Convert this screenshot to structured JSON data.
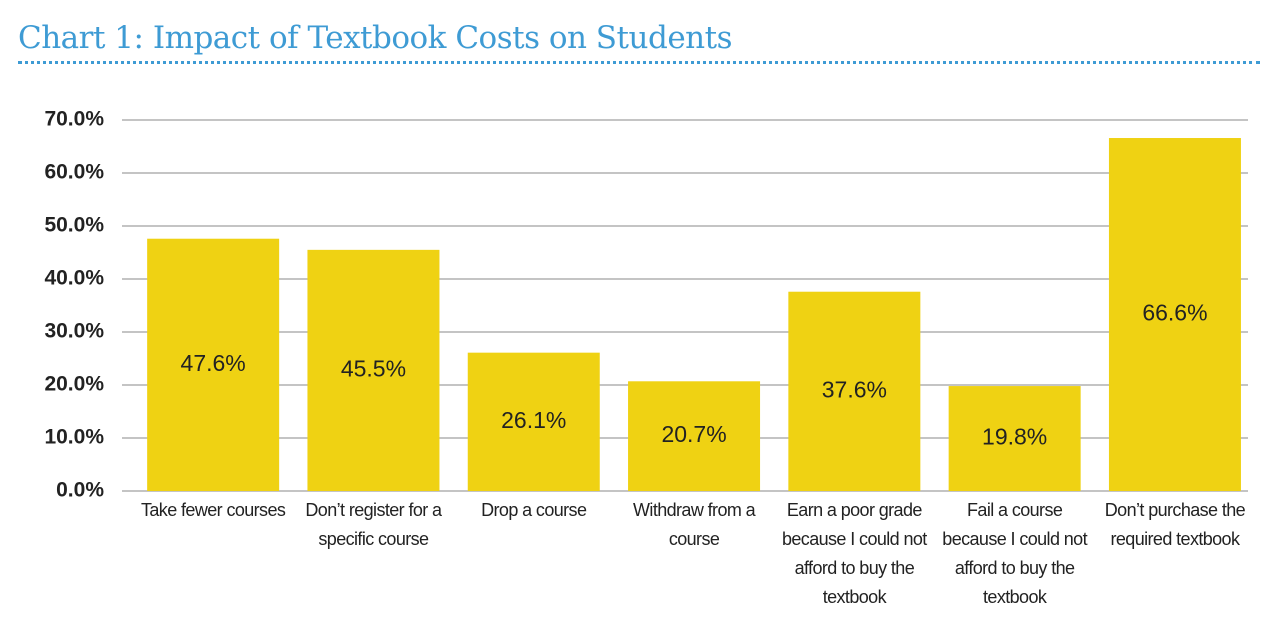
{
  "chart_data": {
    "type": "bar",
    "title": "Chart 1: Impact of Textbook Costs on Students",
    "categories": [
      "Take fewer courses",
      "Don’t register for a specific course",
      "Drop a course",
      "Withdraw from a course",
      "Earn a poor grade because I could not afford to buy the textbook",
      "Fail a course because I could not afford to buy the textbook",
      "Don’t purchase the required textbook"
    ],
    "values": [
      47.6,
      45.5,
      26.1,
      20.7,
      37.6,
      19.8,
      66.6
    ],
    "value_labels": [
      "47.6%",
      "45.5%",
      "26.1%",
      "20.7%",
      "37.6%",
      "19.8%",
      "66.6%"
    ],
    "color": "#efd213",
    "ylim": [
      0,
      70
    ],
    "yticks": [
      {
        "value": 0,
        "label": "0.0%"
      },
      {
        "value": 10,
        "label": "10.0%"
      },
      {
        "value": 20,
        "label": "20.0%"
      },
      {
        "value": 30,
        "label": "30.0%"
      },
      {
        "value": 40,
        "label": "40.0%"
      },
      {
        "value": 50,
        "label": "50.0%"
      },
      {
        "value": 60,
        "label": "60.0%"
      },
      {
        "value": 70,
        "label": "70.0%"
      }
    ],
    "grid": true
  }
}
